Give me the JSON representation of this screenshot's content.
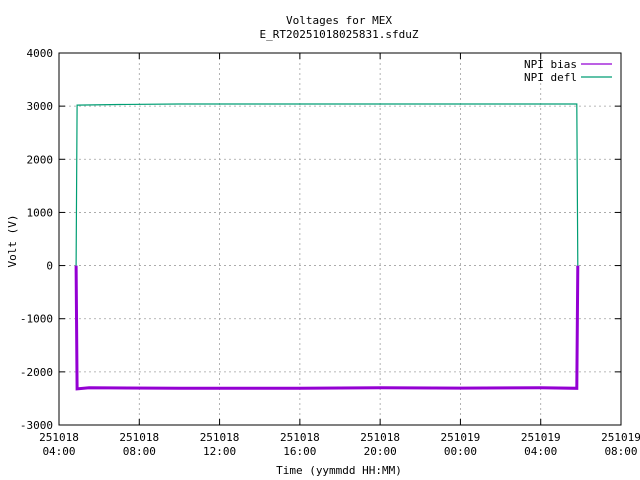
{
  "chart_data": {
    "type": "line",
    "title": [
      "Voltages for MEX",
      "E_RT20251018025831.sfduZ"
    ],
    "xlabel": "Time (yymmdd HH:MM)",
    "ylabel": "Volt (V)",
    "ylim": [
      -3000,
      4000
    ],
    "yticks": [
      -3000,
      -2000,
      -1000,
      0,
      1000,
      2000,
      3000,
      4000
    ],
    "xlim_hours": [
      4,
      32
    ],
    "xticks": [
      {
        "hour": 4,
        "date": "251018",
        "time": "04:00"
      },
      {
        "hour": 8,
        "date": "251018",
        "time": "08:00"
      },
      {
        "hour": 12,
        "date": "251018",
        "time": "12:00"
      },
      {
        "hour": 16,
        "date": "251018",
        "time": "16:00"
      },
      {
        "hour": 20,
        "date": "251018",
        "time": "20:00"
      },
      {
        "hour": 24,
        "date": "251019",
        "time": "00:00"
      },
      {
        "hour": 28,
        "date": "251019",
        "time": "04:00"
      },
      {
        "hour": 32,
        "date": "251019",
        "time": "08:00"
      }
    ],
    "grid": true,
    "legend_position": "top-right",
    "series": [
      {
        "name": "NPI bias",
        "color": "#9400d3",
        "points": [
          [
            4.85,
            0
          ],
          [
            4.9,
            -2320
          ],
          [
            5.5,
            -2300
          ],
          [
            10,
            -2310
          ],
          [
            16,
            -2310
          ],
          [
            20,
            -2300
          ],
          [
            24,
            -2305
          ],
          [
            28,
            -2300
          ],
          [
            29.8,
            -2310
          ],
          [
            29.85,
            0
          ]
        ]
      },
      {
        "name": "NPI defl",
        "color": "#009e73",
        "points": [
          [
            4.85,
            0
          ],
          [
            4.9,
            3020
          ],
          [
            7,
            3030
          ],
          [
            10,
            3040
          ],
          [
            14,
            3040
          ],
          [
            18,
            3040
          ],
          [
            24,
            3040
          ],
          [
            28,
            3040
          ],
          [
            29.8,
            3040
          ],
          [
            29.85,
            0
          ]
        ]
      }
    ]
  }
}
